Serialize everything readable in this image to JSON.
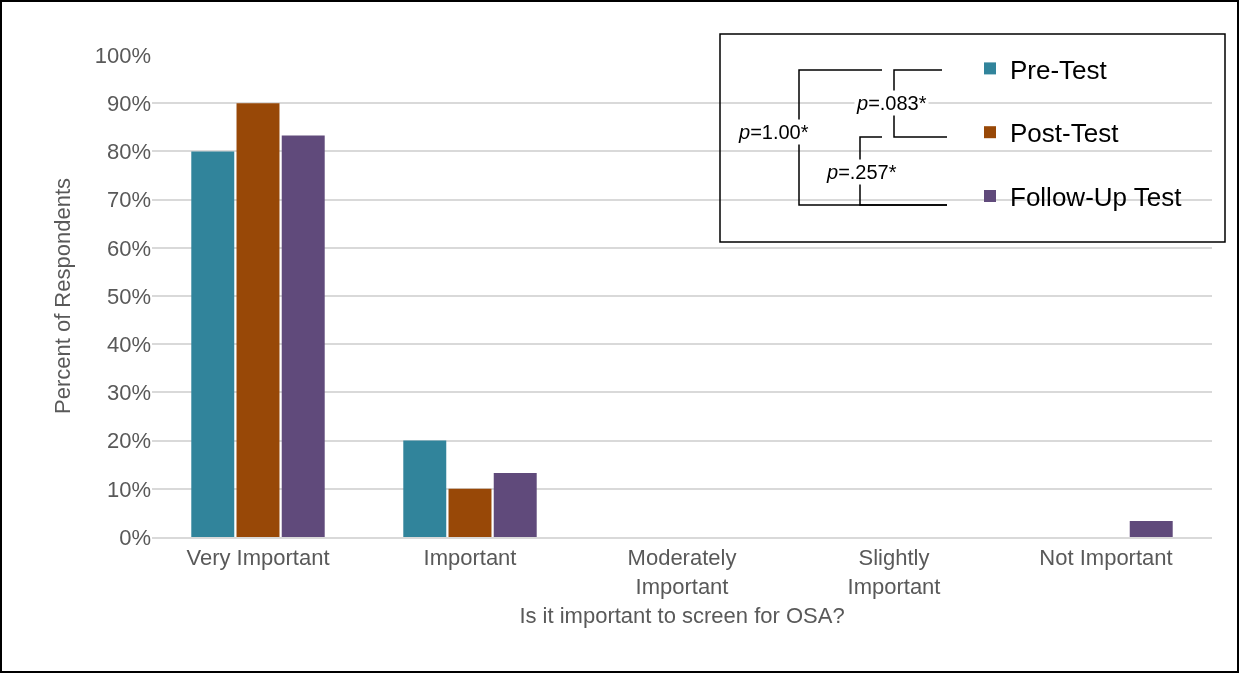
{
  "chart_data": {
    "type": "bar",
    "xlabel": "Is it important to screen for OSA?",
    "ylabel": "Percent of Respondents",
    "categories": [
      "Very Important",
      "Important",
      "Moderately Important",
      "Slightly Important",
      "Not Important"
    ],
    "series": [
      {
        "name": "Pre-Test",
        "color": "#31849b",
        "values": [
          80,
          20,
          0,
          0,
          0
        ]
      },
      {
        "name": "Post-Test",
        "color": "#984807",
        "values": [
          90,
          10,
          0,
          0,
          0
        ]
      },
      {
        "name": "Follow-Up Test",
        "color": "#604a7b",
        "values": [
          83.3,
          13.3,
          0,
          0,
          3.3
        ]
      }
    ],
    "ylim": [
      0,
      100
    ],
    "yticks": [
      {
        "value": 0,
        "label": "0%"
      },
      {
        "value": 10,
        "label": "10%"
      },
      {
        "value": 20,
        "label": "20%"
      },
      {
        "value": 30,
        "label": "30%"
      },
      {
        "value": 40,
        "label": "40%"
      },
      {
        "value": 50,
        "label": "50%"
      },
      {
        "value": 60,
        "label": "60%"
      },
      {
        "value": 70,
        "label": "70%"
      },
      {
        "value": 80,
        "label": "80%"
      },
      {
        "value": 90,
        "label": "90%"
      },
      {
        "value": 100,
        "label": "100%"
      }
    ],
    "grid": "y",
    "legend": "top right",
    "annotations": [
      "p=1.00*",
      "p=.083*",
      "p=.257*"
    ]
  }
}
